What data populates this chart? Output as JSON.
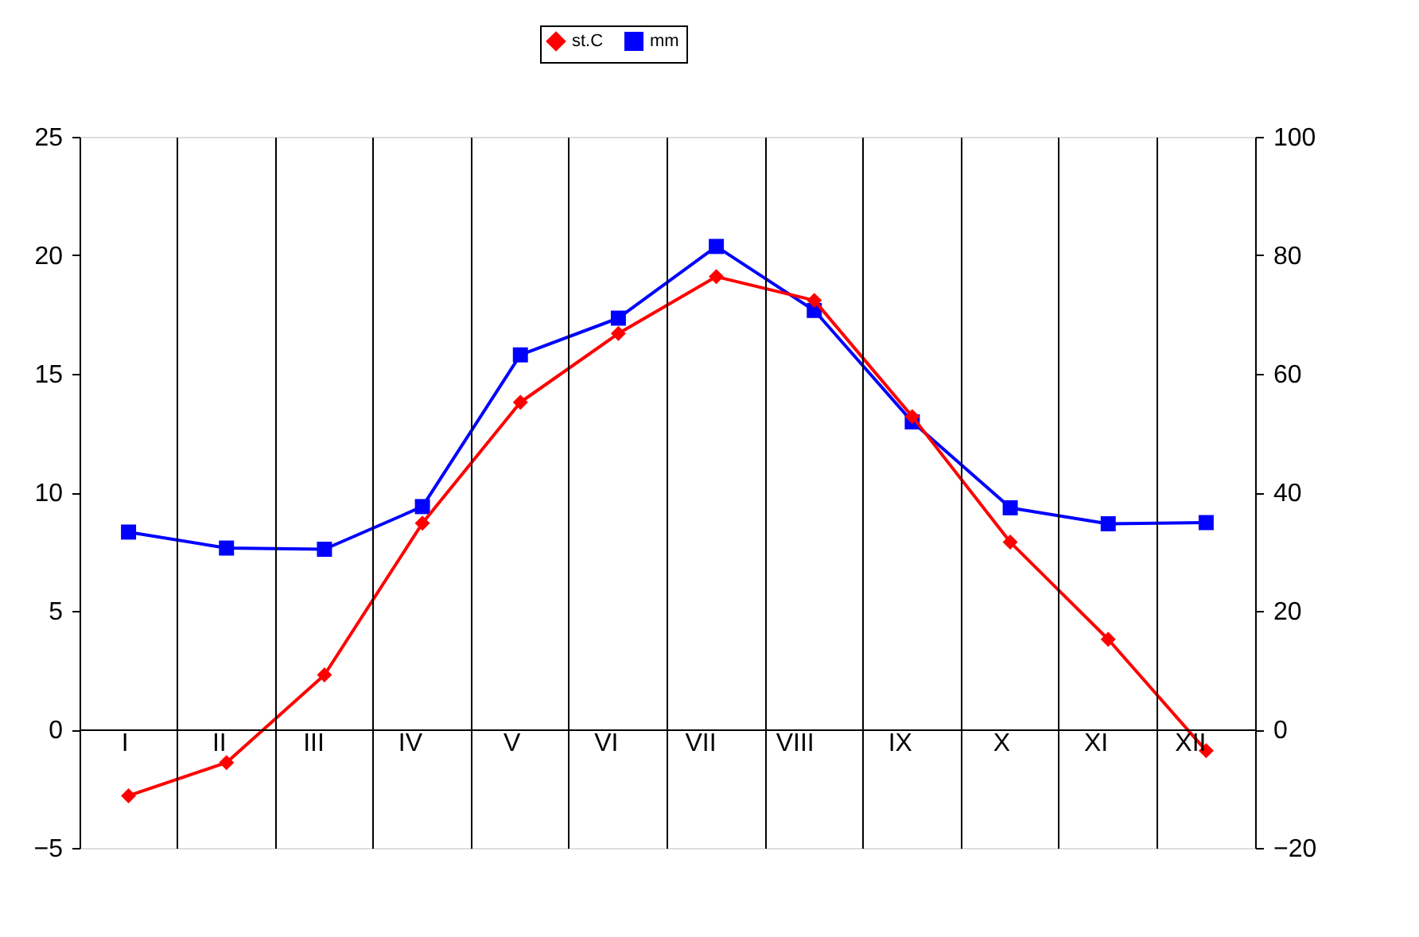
{
  "chart_data": {
    "type": "line",
    "categories": [
      "I",
      "II",
      "III",
      "IV",
      "V",
      "VI",
      "VII",
      "VIII",
      "IX",
      "X",
      "XI",
      "XII"
    ],
    "series": [
      {
        "name": "st.C",
        "color": "#ff0000",
        "marker": "diamond",
        "values": [
          -2.8,
          -1.4,
          2.3,
          8.7,
          13.8,
          16.7,
          19.1,
          18.1,
          13.2,
          7.9,
          3.8,
          -0.9
        ]
      },
      {
        "name": "mm",
        "color": "#0000ff",
        "marker": "square",
        "axis": "y2",
        "values": [
          33.3,
          30.6,
          30.4,
          37.6,
          63.2,
          69.4,
          81.5,
          70.7,
          51.9,
          37.4,
          34.7,
          34.9
        ]
      }
    ],
    "ylim": [
      -5,
      25
    ],
    "yticks": [
      -5,
      0,
      5,
      10,
      15,
      20,
      25
    ],
    "y2lim": [
      -20,
      100
    ],
    "y2ticks": [
      -20,
      0,
      20,
      40,
      60,
      80,
      100
    ],
    "grid": "x",
    "legend": "top",
    "line_style": "solid"
  }
}
